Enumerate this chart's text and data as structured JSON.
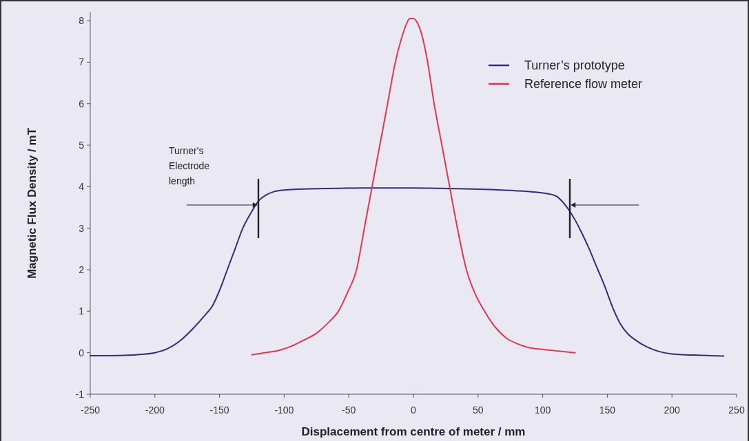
{
  "chart_data": {
    "type": "line",
    "xlabel": "Displacement from centre of meter / mm",
    "ylabel": "Magnetic Flux Density / mT",
    "xlim": [
      -250,
      250
    ],
    "ylim": [
      -1,
      8.2
    ],
    "xticks": [
      -250,
      -200,
      -150,
      -100,
      -50,
      0,
      50,
      100,
      150,
      200,
      250
    ],
    "yticks": [
      -1,
      0,
      1,
      2,
      3,
      4,
      5,
      6,
      7,
      8
    ],
    "legend": "top right",
    "grid": false,
    "annotations": [
      "Turner's Electrode length"
    ],
    "series": [
      {
        "name": "Turner’s prototype",
        "color": "#2e2e80",
        "x": [
          -250,
          -235,
          -220,
          -210,
          -200,
          -190,
          -180,
          -170,
          -160,
          -156,
          -150,
          -144,
          -138,
          -132,
          -126,
          -120,
          -114,
          -108,
          -100,
          -90,
          -80,
          -60,
          -40,
          -20,
          0,
          20,
          40,
          60,
          80,
          90,
          100,
          110,
          115,
          120,
          125,
          130,
          136,
          142,
          148,
          154,
          160,
          166,
          172,
          180,
          190,
          200,
          210,
          220,
          230,
          240
        ],
        "values": [
          -0.07,
          -0.07,
          -0.06,
          -0.04,
          0,
          0.1,
          0.3,
          0.6,
          0.95,
          1.1,
          1.5,
          2,
          2.5,
          3,
          3.35,
          3.65,
          3.8,
          3.88,
          3.92,
          3.94,
          3.95,
          3.96,
          3.97,
          3.97,
          3.97,
          3.96,
          3.95,
          3.93,
          3.9,
          3.88,
          3.85,
          3.78,
          3.65,
          3.45,
          3.2,
          2.9,
          2.5,
          2.05,
          1.6,
          1.1,
          0.7,
          0.45,
          0.3,
          0.15,
          0.03,
          -0.03,
          -0.05,
          -0.06,
          -0.07,
          -0.08
        ]
      },
      {
        "name": "Reference flow meter",
        "color": "#e8344a",
        "x": [
          -125,
          -115,
          -105,
          -95,
          -85,
          -75,
          -65,
          -58,
          -51,
          -44,
          -38,
          -32,
          -26,
          -20,
          -14,
          -9,
          -5,
          -3,
          0,
          3,
          7,
          11,
          16,
          22,
          28,
          34,
          41,
          48,
          55,
          60,
          66,
          72,
          80,
          90,
          100,
          112,
          125
        ],
        "values": [
          -0.05,
          0,
          0.05,
          0.15,
          0.3,
          0.47,
          0.75,
          1,
          1.45,
          2,
          3,
          4,
          5,
          6,
          7,
          7.6,
          7.95,
          8.05,
          8.05,
          7.95,
          7.6,
          7,
          6,
          5,
          4,
          3,
          2,
          1.4,
          1,
          0.75,
          0.52,
          0.35,
          0.22,
          0.12,
          0.08,
          0.04,
          0
        ]
      }
    ]
  }
}
